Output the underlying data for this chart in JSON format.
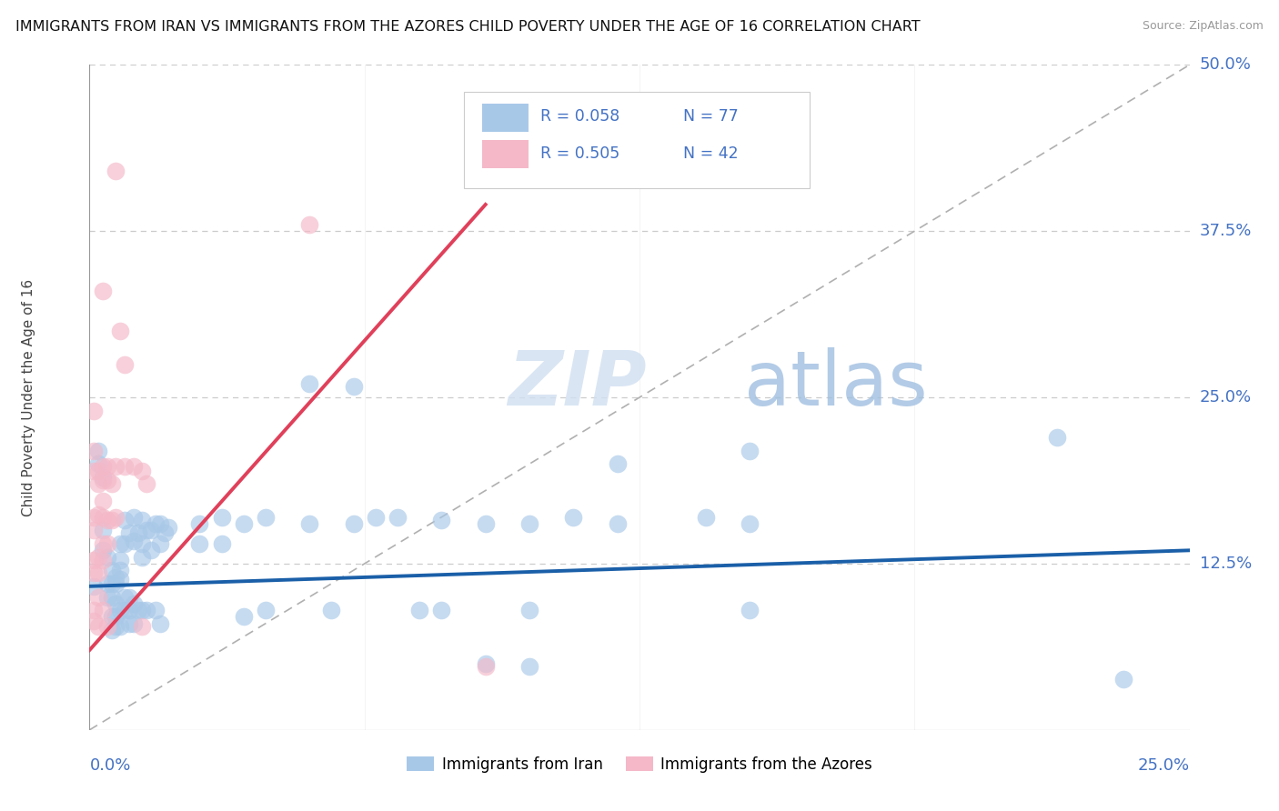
{
  "title": "IMMIGRANTS FROM IRAN VS IMMIGRANTS FROM THE AZORES CHILD POVERTY UNDER THE AGE OF 16 CORRELATION CHART",
  "source": "Source: ZipAtlas.com",
  "xlabel_bottom_left": "0.0%",
  "xlabel_bottom_right": "25.0%",
  "ylabel": "Child Poverty Under the Age of 16",
  "ytick_labels": [
    "12.5%",
    "25.0%",
    "37.5%",
    "50.0%"
  ],
  "ytick_values": [
    0.125,
    0.25,
    0.375,
    0.5
  ],
  "xlim": [
    0,
    0.25
  ],
  "ylim": [
    0,
    0.5
  ],
  "legend_bottom_labels": [
    "Immigrants from Iran",
    "Immigrants from the Azores"
  ],
  "watermark_zip": "ZIP",
  "watermark_atlas": "atlas",
  "iran_color": "#a8c8e8",
  "azores_color": "#f4b8c8",
  "iran_line_color": "#1a5fa8",
  "azores_line_color": "#e0405a",
  "right_axis_color": "#4472c4",
  "legend_border_color": "#cccccc",
  "grid_color": "#cccccc",
  "iran_scatter": [
    [
      0.001,
      0.108
    ],
    [
      0.002,
      0.2
    ],
    [
      0.002,
      0.21
    ],
    [
      0.003,
      0.19
    ],
    [
      0.003,
      0.15
    ],
    [
      0.003,
      0.135
    ],
    [
      0.004,
      0.13
    ],
    [
      0.004,
      0.11
    ],
    [
      0.004,
      0.1
    ],
    [
      0.005,
      0.12
    ],
    [
      0.005,
      0.11
    ],
    [
      0.005,
      0.1
    ],
    [
      0.005,
      0.085
    ],
    [
      0.005,
      0.075
    ],
    [
      0.006,
      0.115
    ],
    [
      0.006,
      0.11
    ],
    [
      0.006,
      0.095
    ],
    [
      0.006,
      0.085
    ],
    [
      0.006,
      0.078
    ],
    [
      0.007,
      0.14
    ],
    [
      0.007,
      0.128
    ],
    [
      0.007,
      0.12
    ],
    [
      0.007,
      0.113
    ],
    [
      0.007,
      0.09
    ],
    [
      0.007,
      0.078
    ],
    [
      0.008,
      0.158
    ],
    [
      0.008,
      0.14
    ],
    [
      0.008,
      0.1
    ],
    [
      0.008,
      0.09
    ],
    [
      0.009,
      0.148
    ],
    [
      0.009,
      0.1
    ],
    [
      0.009,
      0.09
    ],
    [
      0.009,
      0.08
    ],
    [
      0.01,
      0.16
    ],
    [
      0.01,
      0.142
    ],
    [
      0.01,
      0.095
    ],
    [
      0.01,
      0.08
    ],
    [
      0.011,
      0.148
    ],
    [
      0.011,
      0.09
    ],
    [
      0.012,
      0.158
    ],
    [
      0.012,
      0.14
    ],
    [
      0.012,
      0.13
    ],
    [
      0.012,
      0.09
    ],
    [
      0.013,
      0.15
    ],
    [
      0.013,
      0.09
    ],
    [
      0.014,
      0.15
    ],
    [
      0.014,
      0.135
    ],
    [
      0.015,
      0.155
    ],
    [
      0.015,
      0.09
    ],
    [
      0.016,
      0.155
    ],
    [
      0.016,
      0.14
    ],
    [
      0.016,
      0.08
    ],
    [
      0.017,
      0.148
    ],
    [
      0.018,
      0.152
    ],
    [
      0.025,
      0.155
    ],
    [
      0.025,
      0.14
    ],
    [
      0.03,
      0.16
    ],
    [
      0.03,
      0.14
    ],
    [
      0.035,
      0.155
    ],
    [
      0.035,
      0.085
    ],
    [
      0.04,
      0.16
    ],
    [
      0.04,
      0.09
    ],
    [
      0.05,
      0.26
    ],
    [
      0.05,
      0.155
    ],
    [
      0.055,
      0.09
    ],
    [
      0.06,
      0.258
    ],
    [
      0.06,
      0.155
    ],
    [
      0.065,
      0.16
    ],
    [
      0.07,
      0.16
    ],
    [
      0.075,
      0.09
    ],
    [
      0.08,
      0.158
    ],
    [
      0.08,
      0.09
    ],
    [
      0.09,
      0.155
    ],
    [
      0.09,
      0.05
    ],
    [
      0.1,
      0.155
    ],
    [
      0.1,
      0.09
    ],
    [
      0.1,
      0.048
    ],
    [
      0.11,
      0.16
    ],
    [
      0.12,
      0.2
    ],
    [
      0.12,
      0.155
    ],
    [
      0.14,
      0.16
    ],
    [
      0.15,
      0.21
    ],
    [
      0.15,
      0.155
    ],
    [
      0.15,
      0.09
    ],
    [
      0.22,
      0.22
    ],
    [
      0.235,
      0.038
    ]
  ],
  "azores_scatter": [
    [
      0.001,
      0.24
    ],
    [
      0.001,
      0.21
    ],
    [
      0.001,
      0.195
    ],
    [
      0.001,
      0.16
    ],
    [
      0.001,
      0.15
    ],
    [
      0.001,
      0.128
    ],
    [
      0.001,
      0.118
    ],
    [
      0.001,
      0.09
    ],
    [
      0.001,
      0.082
    ],
    [
      0.002,
      0.195
    ],
    [
      0.002,
      0.185
    ],
    [
      0.002,
      0.162
    ],
    [
      0.002,
      0.13
    ],
    [
      0.002,
      0.118
    ],
    [
      0.002,
      0.1
    ],
    [
      0.002,
      0.078
    ],
    [
      0.003,
      0.33
    ],
    [
      0.003,
      0.198
    ],
    [
      0.003,
      0.188
    ],
    [
      0.003,
      0.172
    ],
    [
      0.003,
      0.16
    ],
    [
      0.003,
      0.14
    ],
    [
      0.003,
      0.128
    ],
    [
      0.003,
      0.09
    ],
    [
      0.004,
      0.198
    ],
    [
      0.004,
      0.188
    ],
    [
      0.004,
      0.158
    ],
    [
      0.004,
      0.14
    ],
    [
      0.004,
      0.078
    ],
    [
      0.005,
      0.185
    ],
    [
      0.005,
      0.158
    ],
    [
      0.006,
      0.42
    ],
    [
      0.006,
      0.198
    ],
    [
      0.006,
      0.16
    ],
    [
      0.007,
      0.3
    ],
    [
      0.008,
      0.275
    ],
    [
      0.008,
      0.198
    ],
    [
      0.01,
      0.198
    ],
    [
      0.012,
      0.195
    ],
    [
      0.012,
      0.078
    ],
    [
      0.013,
      0.185
    ],
    [
      0.05,
      0.38
    ],
    [
      0.09,
      0.048
    ]
  ],
  "iran_line": {
    "x0": 0.0,
    "x1": 0.25,
    "y0": 0.108,
    "y1": 0.135
  },
  "azores_line": {
    "x0": 0.0,
    "x1": 0.09,
    "y0": 0.06,
    "y1": 0.395
  }
}
